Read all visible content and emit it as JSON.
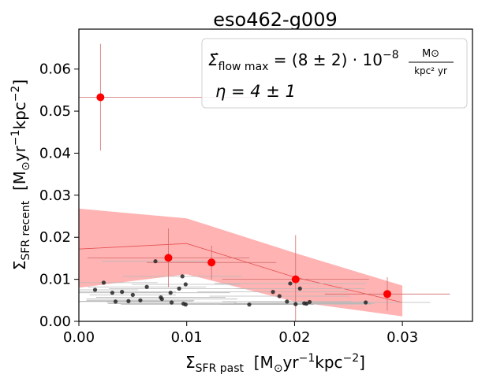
{
  "chart_data": {
    "type": "scatter",
    "title": "eso462-g009",
    "xlabel": {
      "main": "Σ",
      "sub": "SFR past",
      "units": "[M",
      "units_sub": "⊙",
      "units_rest": "yr",
      "units_sup1": "−1",
      "units_kpc": "kpc",
      "units_sup2": "−2",
      "units_end": "]"
    },
    "ylabel": {
      "main": "Σ",
      "sub": "SFR recent",
      "units": "[M",
      "units_sub": "⊙",
      "units_rest": "yr",
      "units_sup1": "−1",
      "units_kpc": "kpc",
      "units_sup2": "−2",
      "units_end": "]"
    },
    "xlim": [
      0.0,
      0.0365
    ],
    "ylim": [
      0.0,
      0.0695
    ],
    "xticks": [
      0.0,
      0.01,
      0.02,
      0.03
    ],
    "xtick_labels": [
      "0.00",
      "0.01",
      "0.02",
      "0.03"
    ],
    "yticks": [
      0.0,
      0.01,
      0.02,
      0.03,
      0.04,
      0.05,
      0.06
    ],
    "ytick_labels": [
      "0.00",
      "0.01",
      "0.02",
      "0.03",
      "0.04",
      "0.05",
      "0.06"
    ],
    "annotation": {
      "flow_prefix": "Σ̇",
      "flow_sub": "flow max",
      "flow_value": " = (8 ± 2) · 10",
      "flow_exp": "−8",
      "flow_unit_num": "M⊙",
      "flow_unit_den": "kpc² yr",
      "eta": "η = 4 ± 1"
    },
    "model_band": {
      "x": [
        0.0,
        0.01,
        0.02,
        0.03
      ],
      "upper": [
        0.0268,
        0.0245,
        0.0163,
        0.0085
      ],
      "lower": [
        0.008,
        0.0112,
        0.0047,
        0.0012
      ],
      "center": [
        0.0172,
        0.0185,
        0.0105,
        0.0045
      ]
    },
    "binned_points": [
      {
        "x": 0.002,
        "y": 0.0533,
        "xerr": 0.0145,
        "yerr": 0.0127
      },
      {
        "x": 0.0083,
        "y": 0.0151,
        "xerr": 0.0075,
        "yerr": 0.007
      },
      {
        "x": 0.0123,
        "y": 0.014,
        "xerr": 0.006,
        "yerr": 0.004
      },
      {
        "x": 0.0201,
        "y": 0.01,
        "xerr": 0.0068,
        "yerr": 0.0105
      },
      {
        "x": 0.0286,
        "y": 0.0065,
        "xerr": 0.0058,
        "yerr": 0.004
      }
    ],
    "individual_points": [
      {
        "x": 0.0015,
        "y": 0.0075,
        "xerr": 0.004
      },
      {
        "x": 0.0023,
        "y": 0.0092,
        "xerr": 0.005
      },
      {
        "x": 0.0031,
        "y": 0.0068,
        "xerr": 0.0045
      },
      {
        "x": 0.0034,
        "y": 0.0047,
        "xerr": 0.0055
      },
      {
        "x": 0.004,
        "y": 0.007,
        "xerr": 0.005
      },
      {
        "x": 0.0046,
        "y": 0.0048,
        "xerr": 0.006
      },
      {
        "x": 0.005,
        "y": 0.0063,
        "xerr": 0.004
      },
      {
        "x": 0.0057,
        "y": 0.005,
        "xerr": 0.005
      },
      {
        "x": 0.0063,
        "y": 0.0082,
        "xerr": 0.0055
      },
      {
        "x": 0.0071,
        "y": 0.0143,
        "xerr": 0.005
      },
      {
        "x": 0.0076,
        "y": 0.0057,
        "xerr": 0.006
      },
      {
        "x": 0.0077,
        "y": 0.0053,
        "xerr": 0.007
      },
      {
        "x": 0.0085,
        "y": 0.0068,
        "xerr": 0.0055
      },
      {
        "x": 0.0086,
        "y": 0.0045,
        "xerr": 0.006
      },
      {
        "x": 0.0093,
        "y": 0.0078,
        "xerr": 0.0065
      },
      {
        "x": 0.0096,
        "y": 0.0107,
        "xerr": 0.0055
      },
      {
        "x": 0.0097,
        "y": 0.0042,
        "xerr": 0.007
      },
      {
        "x": 0.0099,
        "y": 0.004,
        "xerr": 0.006
      },
      {
        "x": 0.0099,
        "y": 0.0088,
        "xerr": 0.005
      },
      {
        "x": 0.0158,
        "y": 0.004,
        "xerr": 0.006
      },
      {
        "x": 0.018,
        "y": 0.007,
        "xerr": 0.007
      },
      {
        "x": 0.0186,
        "y": 0.006,
        "xerr": 0.0065
      },
      {
        "x": 0.0193,
        "y": 0.0047,
        "xerr": 0.006
      },
      {
        "x": 0.0196,
        "y": 0.009,
        "xerr": 0.007
      },
      {
        "x": 0.0201,
        "y": 0.0041,
        "xerr": 0.007
      },
      {
        "x": 0.0205,
        "y": 0.0078,
        "xerr": 0.006
      },
      {
        "x": 0.0209,
        "y": 0.0043,
        "xerr": 0.0065
      },
      {
        "x": 0.0211,
        "y": 0.0042,
        "xerr": 0.006
      },
      {
        "x": 0.0214,
        "y": 0.0046,
        "xerr": 0.0055
      },
      {
        "x": 0.0266,
        "y": 0.0045,
        "xerr": 0.006
      }
    ],
    "colors": {
      "band": "#ffb3b3",
      "band_line": "#e85050",
      "binned": "#ff0000",
      "binned_err": "#d06a6a",
      "individual": "#262626",
      "individual_err": "#b8b8b8"
    }
  }
}
